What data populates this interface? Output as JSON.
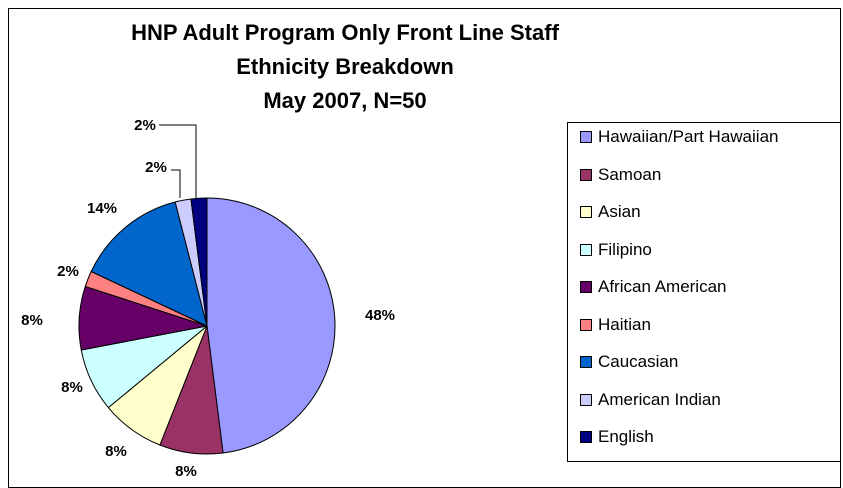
{
  "chart_data": {
    "type": "pie",
    "title": [
      "HNP Adult Program Only Front Line Staff",
      "Ethnicity Breakdown",
      "May 2007, N=50"
    ],
    "slices": [
      {
        "name": "Hawaiian/Part Hawaiian",
        "value": 48,
        "label": "48%",
        "color": "#9999FF"
      },
      {
        "name": "Samoan",
        "value": 8,
        "label": "8%",
        "color": "#993366"
      },
      {
        "name": "Asian",
        "value": 8,
        "label": "8%",
        "color": "#FFFFCC"
      },
      {
        "name": "Filipino",
        "value": 8,
        "label": "8%",
        "color": "#CCFFFF"
      },
      {
        "name": "African American",
        "value": 8,
        "label": "8%",
        "color": "#660066"
      },
      {
        "name": "Haitian",
        "value": 2,
        "label": "2%",
        "color": "#FF8080"
      },
      {
        "name": "Caucasian",
        "value": 14,
        "label": "14%",
        "color": "#0066CC"
      },
      {
        "name": "American Indian",
        "value": 2,
        "label": "2%",
        "color": "#CCCCFF"
      },
      {
        "name": "English",
        "value": 2,
        "label": "2%",
        "color": "#000080"
      }
    ],
    "legend_position": "right"
  }
}
